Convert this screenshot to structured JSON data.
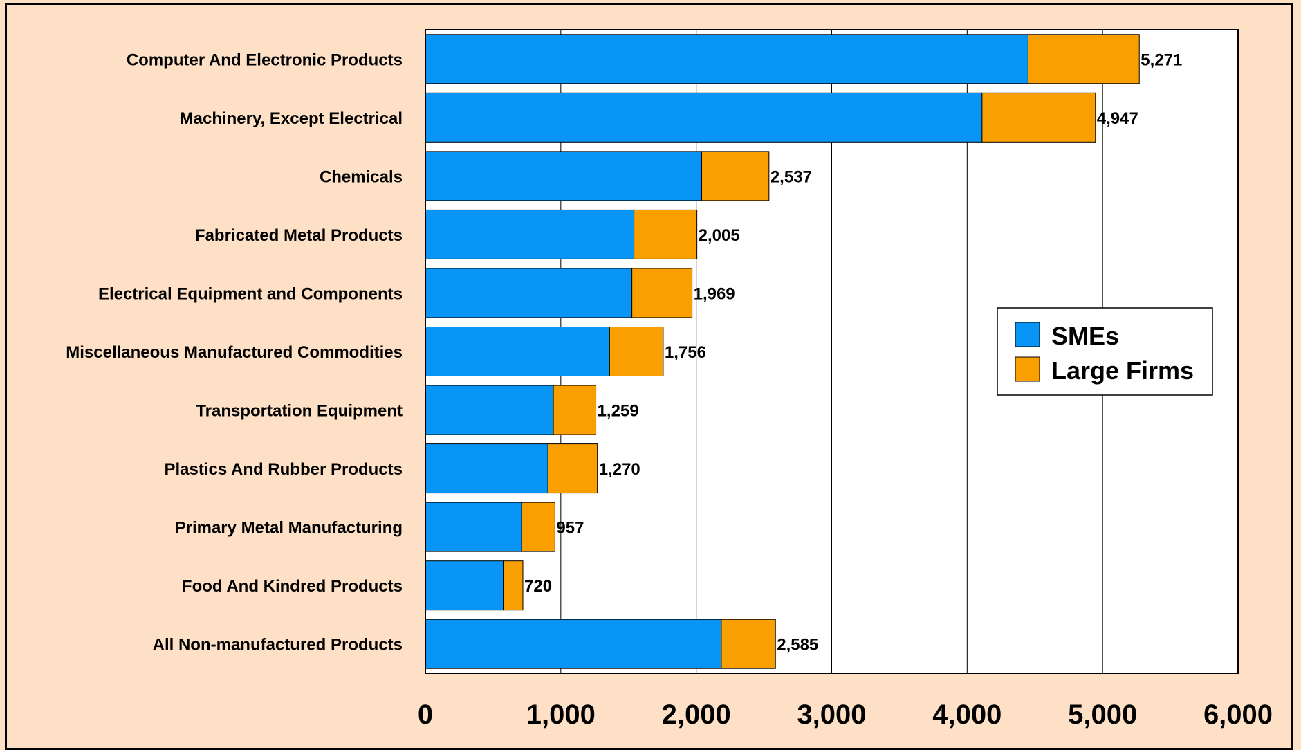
{
  "chart_data": {
    "type": "bar",
    "orientation": "horizontal",
    "stacked": true,
    "categories": [
      "Computer And Electronic Products",
      "Machinery, Except Electrical",
      "Chemicals",
      "Fabricated Metal Products",
      "Electrical Equipment and Components",
      "Miscellaneous Manufactured Commodities",
      "Transportation Equipment",
      "Plastics And Rubber Products",
      "Primary Metal Manufacturing",
      "Food And Kindred Products",
      "All Non-manufactured Products"
    ],
    "series": [
      {
        "name": "SMEs",
        "color": "#0895f5",
        "values": [
          4450,
          4110,
          2040,
          1540,
          1525,
          1360,
          945,
          905,
          710,
          575,
          2185
        ]
      },
      {
        "name": "Large Firms",
        "color": "#f99f00",
        "values": [
          821,
          837,
          497,
          465,
          444,
          396,
          314,
          365,
          247,
          145,
          400
        ]
      }
    ],
    "totals": [
      5271,
      4947,
      2537,
      2005,
      1969,
      1756,
      1259,
      1270,
      957,
      720,
      2585
    ],
    "total_labels": [
      "5,271",
      "4,947",
      "2,537",
      "2,005",
      "1,969",
      "1,756",
      "1,259",
      "1,270",
      "957",
      "720",
      "2,585"
    ],
    "xlim": [
      0,
      6000
    ],
    "xticks": [
      0,
      1000,
      2000,
      3000,
      4000,
      5000,
      6000
    ],
    "xtick_labels": [
      "0",
      "1,000",
      "2,000",
      "3,000",
      "4,000",
      "5,000",
      "6,000"
    ],
    "grid": "vertical",
    "legend_position": "right",
    "title": "",
    "xlabel": "",
    "ylabel": ""
  },
  "colors": {
    "background": "#fde0c5",
    "plot_area": "#ffffff",
    "sme": "#0895f5",
    "large": "#f99f00"
  }
}
